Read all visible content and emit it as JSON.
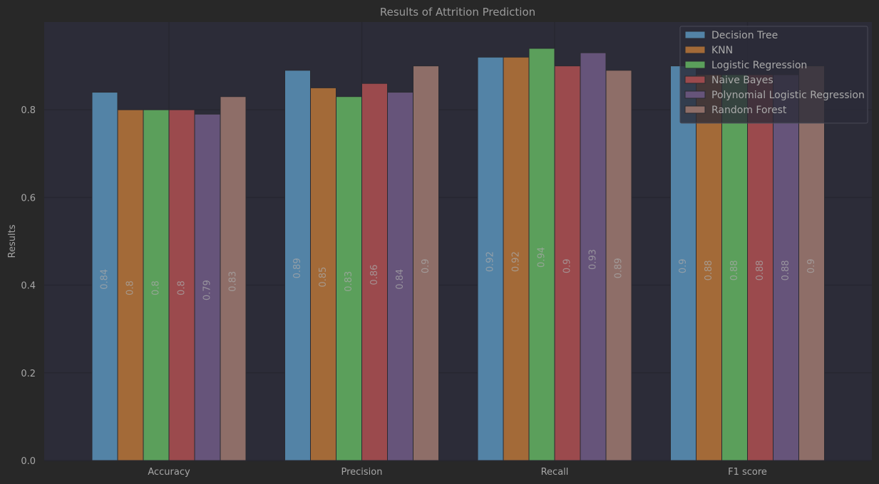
{
  "chart_data": {
    "type": "bar",
    "title": "Results of Attrition Prediction",
    "xlabel": "",
    "ylabel": "Results",
    "ylim": [
      0,
      1.0
    ],
    "yticks": [
      "0.0",
      "0.2",
      "0.4",
      "0.6",
      "0.8"
    ],
    "grid": true,
    "legend_position": "top-right",
    "categories": [
      "Accuracy",
      "Precision",
      "Recall",
      "F1 score"
    ],
    "series": [
      {
        "name": "Decision Tree",
        "color": "#5383a6",
        "values": [
          0.84,
          0.89,
          0.92,
          0.9
        ],
        "labels": [
          "0.84",
          "0.89",
          "0.92",
          "0.9"
        ]
      },
      {
        "name": "KNN",
        "color": "#a36a38",
        "values": [
          0.8,
          0.85,
          0.92,
          0.88
        ],
        "labels": [
          "0.8",
          "0.85",
          "0.92",
          "0.88"
        ]
      },
      {
        "name": "Logistic Regression",
        "color": "#5b9f5b",
        "values": [
          0.8,
          0.83,
          0.94,
          0.88
        ],
        "labels": [
          "0.8",
          "0.83",
          "0.94",
          "0.88"
        ]
      },
      {
        "name": "Naive Bayes",
        "color": "#9b4a4d",
        "values": [
          0.8,
          0.86,
          0.9,
          0.88
        ],
        "labels": [
          "0.8",
          "0.86",
          "0.9",
          "0.88"
        ]
      },
      {
        "name": "Polynomial Logistic Regression",
        "color": "#66547a",
        "values": [
          0.79,
          0.84,
          0.93,
          0.88
        ],
        "labels": [
          "0.79",
          "0.84",
          "0.93",
          "0.88"
        ]
      },
      {
        "name": "Random Forest",
        "color": "#8e6e68",
        "values": [
          0.83,
          0.9,
          0.89,
          0.9
        ],
        "labels": [
          "0.83",
          "0.9",
          "0.89",
          "0.9"
        ]
      }
    ]
  }
}
